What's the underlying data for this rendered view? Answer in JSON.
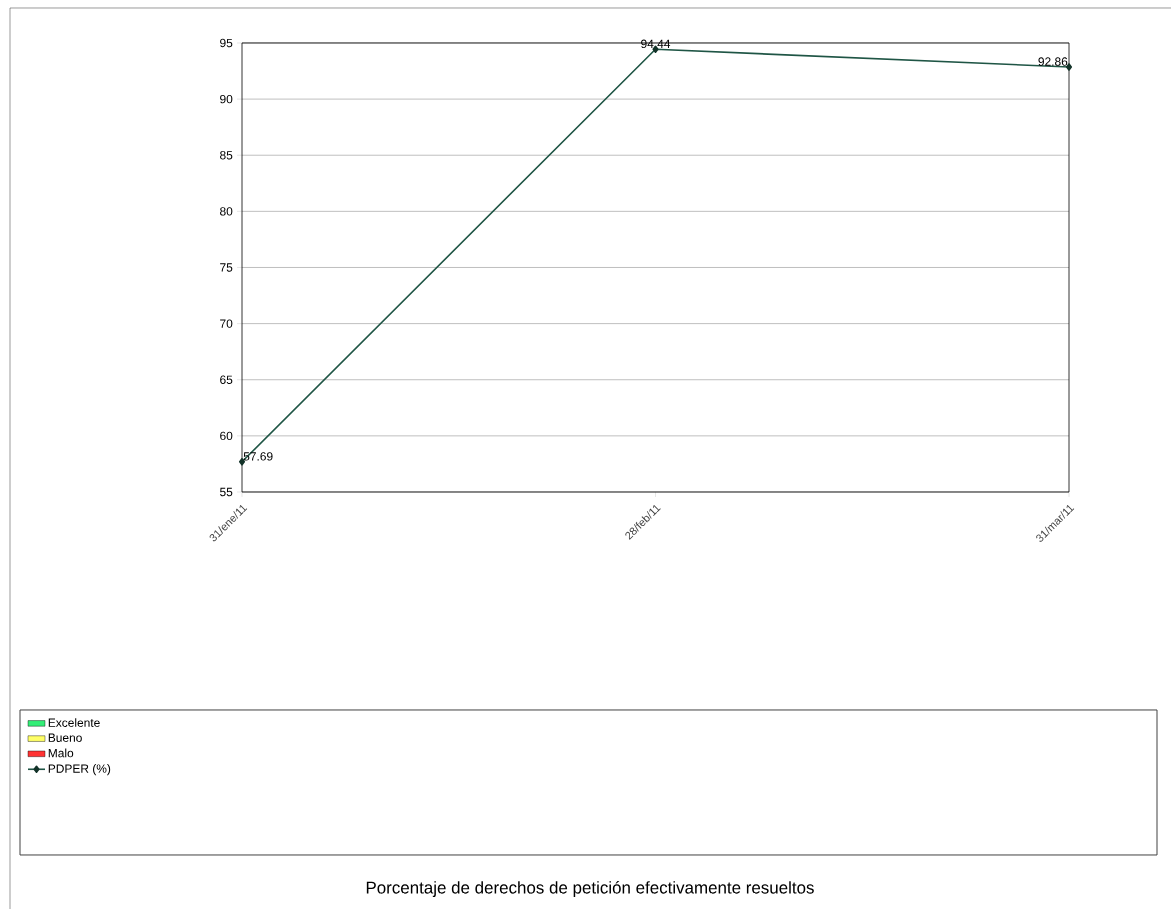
{
  "chart_data": {
    "type": "line",
    "title": "Porcentaje de derechos de petición efectivamente resueltos",
    "categories": [
      "31/ene/11",
      "28/feb/11",
      "31/mar/11"
    ],
    "series": [
      {
        "name": "Excelente",
        "type": "bar",
        "color": "#33ee77",
        "values": [
          null,
          null,
          null
        ]
      },
      {
        "name": "Bueno",
        "type": "bar",
        "color": "#ffff66",
        "values": [
          null,
          null,
          null
        ]
      },
      {
        "name": "Malo",
        "type": "bar",
        "color": "#ff3333",
        "values": [
          null,
          null,
          null
        ]
      },
      {
        "name": "PDPER (%)",
        "color": "#1f5545",
        "values": [
          57.69,
          94.44,
          92.86
        ]
      }
    ],
    "ylim": [
      55,
      95
    ],
    "yticks": [
      55,
      60,
      65,
      70,
      75,
      80,
      85,
      90,
      95
    ],
    "grid": "y",
    "legend": "bottom",
    "marker": "diamond",
    "data_labels": true
  }
}
